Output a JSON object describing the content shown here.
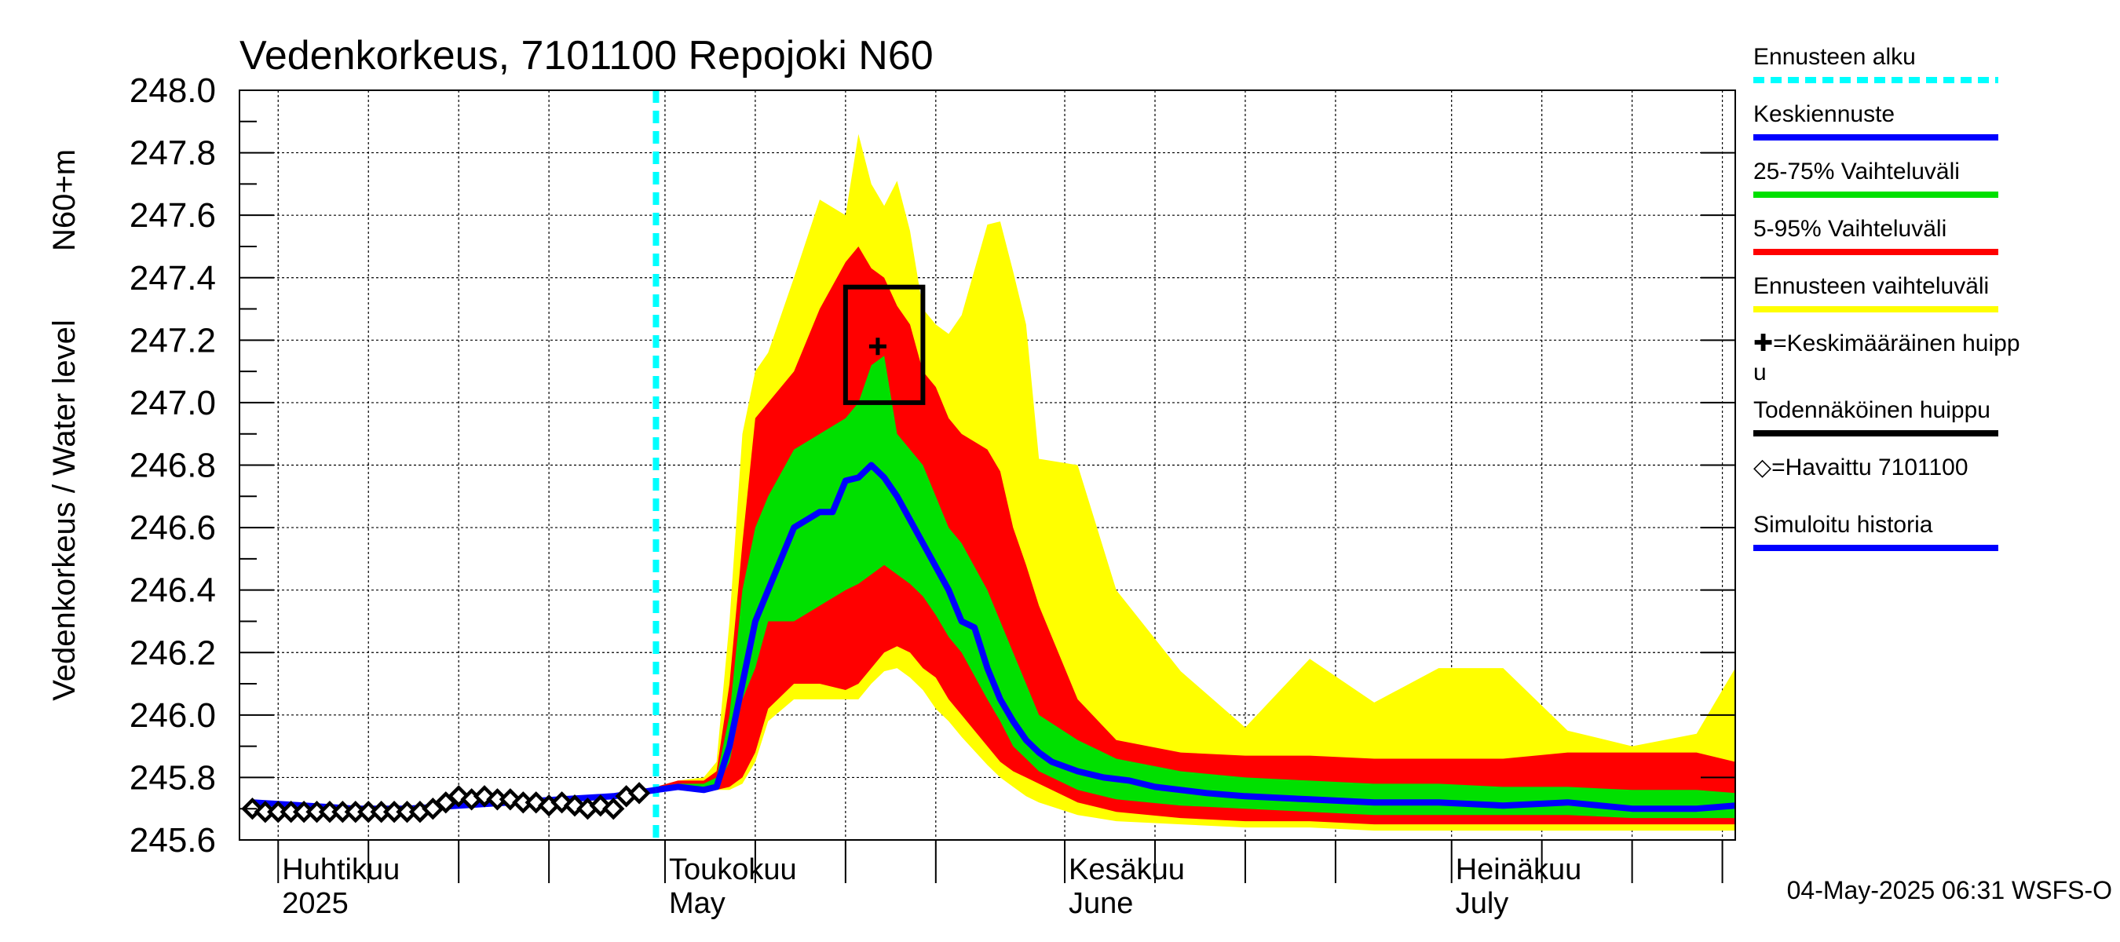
{
  "chart_data": {
    "type": "area",
    "title": "Vedenkorkeus, 7101100 Repojoki N60",
    "ylabel_left": "Vedenkorkeus / Water level",
    "ylabel_right": "N60+m",
    "ylim": [
      245.6,
      248.0
    ],
    "yticks": [
      "245.6",
      "245.8",
      "246.0",
      "246.2",
      "246.4",
      "246.6",
      "246.8",
      "247.0",
      "247.2",
      "247.4",
      "247.6",
      "247.8",
      "248.0"
    ],
    "xlim": [
      -3,
      113
    ],
    "x_unit": "days after 2025-04-01",
    "grid": true,
    "month_labels": [
      {
        "x": 0,
        "line1": "Huhtikuu",
        "line2": "2025"
      },
      {
        "x": 30,
        "line1": "Toukokuu",
        "line2": "May"
      },
      {
        "x": 61,
        "line1": "Kesäkuu",
        "line2": "June"
      },
      {
        "x": 91,
        "line1": "Heinäkuu",
        "line2": "July"
      }
    ],
    "forecast_start": 29.3,
    "forecast_x": [
      29.3,
      31,
      33,
      34,
      35,
      36,
      37,
      38,
      40,
      42,
      44,
      45,
      46,
      47,
      48,
      49,
      50,
      51,
      52,
      53,
      55,
      56,
      57,
      58,
      59,
      62,
      65,
      70,
      75,
      80,
      85,
      90,
      95,
      100,
      105,
      110,
      113
    ],
    "bands": {
      "ennuste_min": [
        245.76,
        245.77,
        245.76,
        245.76,
        245.76,
        245.78,
        245.85,
        245.98,
        246.05,
        246.05,
        246.05,
        246.05,
        246.1,
        246.14,
        246.15,
        246.12,
        246.08,
        246.02,
        245.98,
        245.93,
        245.84,
        245.8,
        245.77,
        245.74,
        245.72,
        245.68,
        245.66,
        245.65,
        245.64,
        245.64,
        245.63,
        245.63,
        245.63,
        245.63,
        245.63,
        245.63,
        245.63
      ],
      "ennuste_max": [
        245.77,
        245.79,
        245.8,
        245.85,
        246.3,
        246.9,
        247.1,
        247.16,
        247.4,
        247.65,
        247.6,
        247.86,
        247.7,
        247.63,
        247.71,
        247.55,
        247.3,
        247.25,
        247.22,
        247.28,
        247.57,
        247.58,
        247.42,
        247.25,
        246.82,
        246.8,
        246.4,
        246.14,
        245.96,
        246.18,
        246.04,
        246.15,
        246.15,
        245.95,
        245.9,
        245.94,
        246.15
      ],
      "p5": [
        245.76,
        245.77,
        245.76,
        245.76,
        245.77,
        245.8,
        245.88,
        246.02,
        246.1,
        246.1,
        246.08,
        246.1,
        246.15,
        246.2,
        246.22,
        246.2,
        246.15,
        246.12,
        246.05,
        246.0,
        245.9,
        245.85,
        245.82,
        245.8,
        245.78,
        245.72,
        245.69,
        245.67,
        245.66,
        245.66,
        245.65,
        245.65,
        245.65,
        245.65,
        245.65,
        245.65,
        245.65
      ],
      "p95": [
        245.77,
        245.79,
        245.79,
        245.82,
        246.1,
        246.55,
        246.95,
        247.0,
        247.1,
        247.3,
        247.45,
        247.5,
        247.43,
        247.4,
        247.31,
        247.25,
        247.1,
        247.05,
        246.95,
        246.9,
        246.85,
        246.78,
        246.6,
        246.48,
        246.35,
        246.05,
        245.92,
        245.88,
        245.87,
        245.87,
        245.86,
        245.86,
        245.86,
        245.88,
        245.88,
        245.88,
        245.85
      ],
      "p25": [
        245.77,
        245.77,
        245.77,
        245.77,
        245.85,
        246.05,
        246.15,
        246.3,
        246.3,
        246.35,
        246.4,
        246.42,
        246.45,
        246.48,
        246.45,
        246.42,
        246.38,
        246.32,
        246.25,
        246.2,
        246.05,
        245.98,
        245.9,
        245.86,
        245.82,
        245.76,
        245.73,
        245.71,
        245.7,
        245.69,
        245.68,
        245.68,
        245.68,
        245.68,
        245.67,
        245.67,
        245.67
      ],
      "p75": [
        245.77,
        245.78,
        245.78,
        245.8,
        246.0,
        246.4,
        246.6,
        246.7,
        246.85,
        246.9,
        246.95,
        247.0,
        247.12,
        247.15,
        246.9,
        246.85,
        246.8,
        246.7,
        246.6,
        246.55,
        246.4,
        246.3,
        246.2,
        246.1,
        246.0,
        245.92,
        245.86,
        245.82,
        245.8,
        245.79,
        245.78,
        245.78,
        245.77,
        245.77,
        245.76,
        245.76,
        245.75
      ]
    },
    "series": [
      {
        "name": "Keskiennuste",
        "x": [
          29.3,
          31,
          33,
          34,
          35,
          36,
          37,
          38,
          40,
          42,
          43,
          44,
          45,
          46,
          47,
          48,
          50,
          52,
          53,
          54,
          55,
          56,
          57,
          58,
          59,
          60,
          62,
          64,
          66,
          68,
          70,
          72,
          75,
          80,
          85,
          90,
          95,
          100,
          105,
          110,
          113
        ],
        "y": [
          245.76,
          245.77,
          245.76,
          245.77,
          245.9,
          246.1,
          246.3,
          246.4,
          246.6,
          246.65,
          246.65,
          246.75,
          246.76,
          246.8,
          246.76,
          246.7,
          246.55,
          246.4,
          246.3,
          246.28,
          246.15,
          246.05,
          245.98,
          245.92,
          245.88,
          245.85,
          245.82,
          245.8,
          245.79,
          245.77,
          245.76,
          245.75,
          245.74,
          245.73,
          245.72,
          245.72,
          245.71,
          245.72,
          245.7,
          245.7,
          245.71
        ]
      },
      {
        "name": "Simuloitu historia",
        "x": [
          -2,
          2,
          6,
          10,
          14,
          18,
          22,
          26,
          29.3
        ],
        "y": [
          245.72,
          245.71,
          245.7,
          245.7,
          245.71,
          245.72,
          245.73,
          245.74,
          245.76
        ]
      }
    ],
    "observed": {
      "name": "Havaittu 7101100",
      "x": [
        -2,
        -1,
        0,
        1,
        2,
        3,
        4,
        5,
        6,
        7,
        8,
        9,
        10,
        11,
        12,
        13,
        14,
        15,
        16,
        17,
        18,
        19,
        20,
        21,
        22,
        23,
        24,
        25,
        26,
        27,
        28
      ],
      "y": [
        245.7,
        245.69,
        245.69,
        245.69,
        245.69,
        245.69,
        245.69,
        245.69,
        245.69,
        245.69,
        245.69,
        245.69,
        245.69,
        245.69,
        245.7,
        245.72,
        245.74,
        245.73,
        245.74,
        245.73,
        245.73,
        245.72,
        245.72,
        245.71,
        245.72,
        245.71,
        245.7,
        245.71,
        245.7,
        245.74,
        245.75
      ]
    },
    "mean_peak": {
      "x": 46.5,
      "y": 247.18
    },
    "probable_peak_box": {
      "x0": 44,
      "x1": 50,
      "y0": 247.0,
      "y1": 247.37
    },
    "colors": {
      "ennuste": "#ffff00",
      "p5_95": "#ff0000",
      "p25_75": "#00e000",
      "median": "#0000ff",
      "forecast_start": "#00ffff",
      "observed": "#000000"
    },
    "legend": {
      "placement": "right",
      "items": [
        {
          "label": "Ennusteen alku",
          "color": "#00ffff",
          "style": "dashed"
        },
        {
          "label": "Keskiennuste",
          "color": "#0000ff",
          "style": "line"
        },
        {
          "label": "25-75% Vaihteluväli",
          "color": "#00e000",
          "style": "line"
        },
        {
          "label": "5-95% Vaihteluväli",
          "color": "#ff0000",
          "style": "line"
        },
        {
          "label": "Ennusteen vaihteluväli",
          "color": "#ffff00",
          "style": "line"
        },
        {
          "label": "✚=Keskimääräinen huipp",
          "label2": "u",
          "color": "",
          "style": "text"
        },
        {
          "label": "Todennäköinen huippu",
          "color": "#000000",
          "style": "line"
        },
        {
          "label": "◇=Havaittu 7101100",
          "color": "",
          "style": "text"
        },
        {
          "label": "Simuloitu historia",
          "color": "#0000ff",
          "style": "line"
        }
      ]
    },
    "timestamp": "04-May-2025 06:31 WSFS-O"
  }
}
